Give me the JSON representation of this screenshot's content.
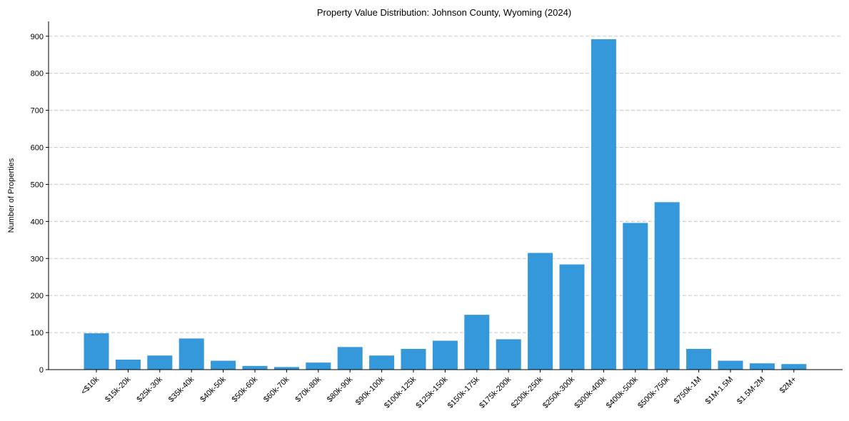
{
  "chart_data": {
    "type": "bar",
    "title": "Property Value Distribution: Johnson County, Wyoming (2024)",
    "xlabel": "",
    "ylabel": "Number of Properties",
    "ylim": [
      0,
      940
    ],
    "yticks": [
      0,
      100,
      200,
      300,
      400,
      500,
      600,
      700,
      800,
      900
    ],
    "grid": "y-dashed",
    "bar_color": "#3498db",
    "categories": [
      "<$10k",
      "$15k-20k",
      "$25k-30k",
      "$35k-40k",
      "$40k-50k",
      "$50k-60k",
      "$60k-70k",
      "$70k-80k",
      "$80k-90k",
      "$90k-100k",
      "$100k-125k",
      "$125k-150k",
      "$150k-175k",
      "$175k-200k",
      "$200k-250k",
      "$250k-300k",
      "$300k-400k",
      "$400k-500k",
      "$500k-750k",
      "$750k-1M",
      "$1M-1.5M",
      "$1.5M-2M",
      "$2M+"
    ],
    "values": [
      98,
      27,
      38,
      84,
      24,
      10,
      7,
      19,
      61,
      38,
      56,
      78,
      148,
      82,
      315,
      284,
      892,
      396,
      452,
      56,
      24,
      17,
      15
    ]
  }
}
